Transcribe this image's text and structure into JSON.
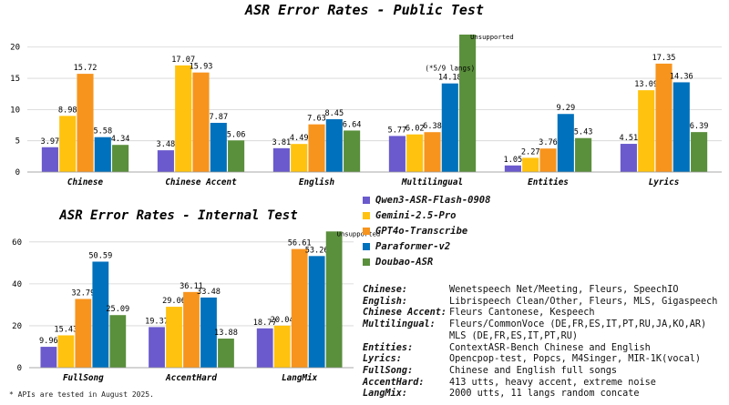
{
  "colors": {
    "Qwen3-ASR-Flash-0908": "#6a5acd",
    "Gemini-2.5-Pro": "#ffc20e",
    "GPT4o-Transcribe": "#f7941d",
    "Paraformer-v2": "#0071bc",
    "Doubao-ASR": "#5a8f3c"
  },
  "chart_data": [
    {
      "type": "bar",
      "title": "ASR Error Rates - Public Test",
      "categories": [
        "Chinese",
        "Chinese Accent",
        "English",
        "Multilingual",
        "Entities",
        "Lyrics"
      ],
      "ylim": [
        0,
        22
      ],
      "yticks": [
        0,
        5,
        10,
        15,
        20
      ],
      "grid": true,
      "series": [
        {
          "name": "Qwen3-ASR-Flash-0908",
          "values": [
            3.97,
            3.48,
            3.81,
            5.77,
            1.05,
            4.51
          ],
          "labels": [
            "3.97",
            "3.48",
            "3.81",
            "5.77",
            "1.05",
            "4.51"
          ]
        },
        {
          "name": "Gemini-2.5-Pro",
          "values": [
            8.98,
            17.07,
            4.49,
            6.02,
            2.27,
            13.09
          ],
          "labels": [
            "8.98",
            "17.07",
            "4.49",
            "6.02",
            "2.27",
            "13.09"
          ]
        },
        {
          "name": "GPT4o-Transcribe",
          "values": [
            15.72,
            15.93,
            7.63,
            6.38,
            3.76,
            17.35
          ],
          "labels": [
            "15.72",
            "15.93",
            "7.63",
            "6.38",
            "3.76",
            "17.35"
          ]
        },
        {
          "name": "Paraformer-v2",
          "values": [
            5.58,
            7.87,
            8.45,
            14.18,
            9.29,
            14.36
          ],
          "labels": [
            "5.58",
            "7.87",
            "8.45",
            "14.18",
            "9.29",
            "14.36"
          ]
        },
        {
          "name": "Doubao-ASR",
          "values": [
            4.34,
            5.06,
            6.64,
            22,
            5.43,
            6.39
          ],
          "labels": [
            "4.34",
            "5.06",
            "6.64",
            "",
            "5.43",
            "6.39"
          ]
        }
      ],
      "annotations": [
        {
          "text": "Unsupported",
          "category": "Multilingual",
          "series": "Doubao-ASR"
        },
        {
          "text": "(*5/9 langs)",
          "category": "Multilingual",
          "series": "Paraformer-v2"
        }
      ]
    },
    {
      "type": "bar",
      "title": "ASR Error Rates - Internal Test",
      "categories": [
        "FullSong",
        "AccentHard",
        "LangMix"
      ],
      "ylim": [
        0,
        66
      ],
      "yticks": [
        0,
        20,
        40,
        60
      ],
      "grid": true,
      "series": [
        {
          "name": "Qwen3-ASR-Flash-0908",
          "values": [
            9.96,
            19.37,
            18.77
          ],
          "labels": [
            "9.96",
            "19.37",
            "18.77"
          ]
        },
        {
          "name": "Gemini-2.5-Pro",
          "values": [
            15.43,
            29.06,
            20.04
          ],
          "labels": [
            "15.43",
            "29.06",
            "20.04"
          ]
        },
        {
          "name": "GPT4o-Transcribe",
          "values": [
            32.79,
            36.11,
            56.61
          ],
          "labels": [
            "32.79",
            "36.11",
            "56.61"
          ]
        },
        {
          "name": "Paraformer-v2",
          "values": [
            50.59,
            33.48,
            53.26
          ],
          "labels": [
            "50.59",
            "33.48",
            "53.26"
          ]
        },
        {
          "name": "Doubao-ASR",
          "values": [
            25.09,
            13.88,
            65
          ],
          "labels": [
            "25.09",
            "13.88",
            ""
          ]
        }
      ],
      "annotations": [
        {
          "text": "Unsupported",
          "category": "LangMix",
          "series": "Doubao-ASR"
        }
      ]
    }
  ],
  "legend": [
    {
      "name": "Qwen3-ASR-Flash-0908"
    },
    {
      "name": "Gemini-2.5-Pro"
    },
    {
      "name": "GPT4o-Transcribe"
    },
    {
      "name": "Paraformer-v2"
    },
    {
      "name": "Doubao-ASR"
    }
  ],
  "datasets": [
    {
      "key": "Chinese:",
      "lines": [
        "Wenetspeech Net/Meeting, Fleurs, SpeechIO"
      ]
    },
    {
      "key": "English:",
      "lines": [
        "Librispeech Clean/Other, Fleurs, MLS, Gigaspeech"
      ]
    },
    {
      "key": "Chinese Accent:",
      "lines": [
        "Fleurs Cantonese, Kespeech"
      ]
    },
    {
      "key": "Multilingual:",
      "lines": [
        "Fleurs/CommonVoce (DE,FR,ES,IT,PT,RU,JA,KO,AR)",
        "MLS (DE,FR,ES,IT,PT,RU)"
      ]
    },
    {
      "key": "Entities:",
      "lines": [
        "ContextASR-Bench Chinese and English"
      ]
    },
    {
      "key": "Lyrics:",
      "lines": [
        "Opencpop-test, Popcs, M4Singer, MIR-1K(vocal)"
      ]
    },
    {
      "key": "FullSong:",
      "lines": [
        "Chinese and English full songs"
      ]
    },
    {
      "key": "AccentHard:",
      "lines": [
        "413 utts, heavy accent, extreme noise"
      ]
    },
    {
      "key": "LangMix:",
      "lines": [
        "2000 utts, 11 langs random concate"
      ]
    }
  ],
  "footnotes": [
    "* APIs are tested in August 2025."
  ]
}
